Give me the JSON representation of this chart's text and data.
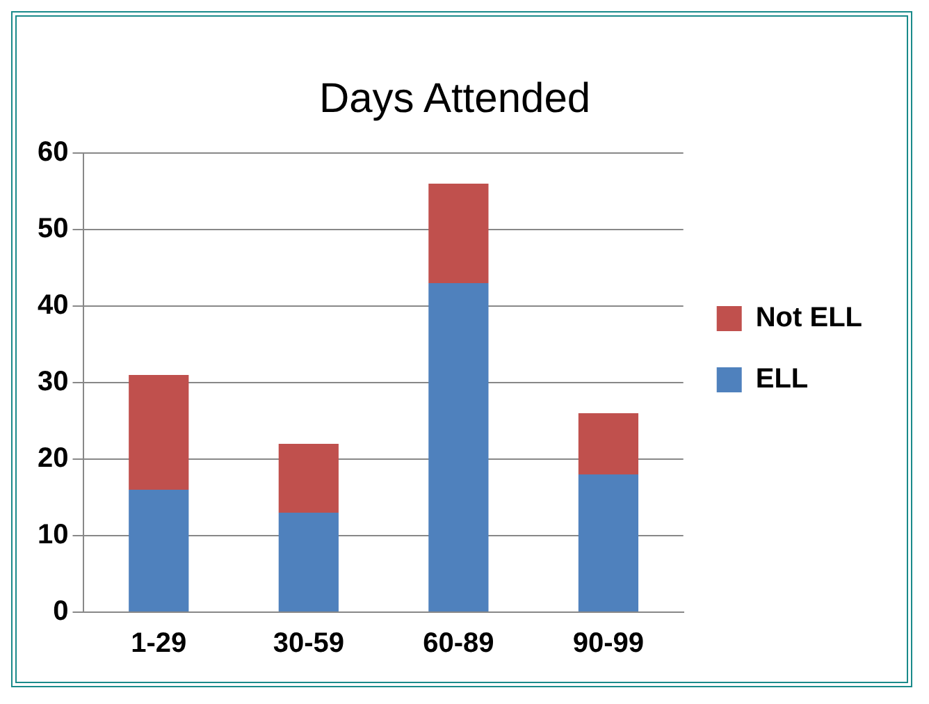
{
  "chart_data": {
    "type": "bar",
    "title": "Days Attended",
    "categories": [
      "1-29",
      "30-59",
      "60-89",
      "90-99"
    ],
    "stacked": true,
    "series": [
      {
        "name": "ELL",
        "color": "#4f81bd",
        "values": [
          16,
          13,
          43,
          18
        ]
      },
      {
        "name": "Not ELL",
        "color": "#c0504d",
        "values": [
          15,
          9,
          13,
          8
        ]
      }
    ],
    "ylim": [
      0,
      60
    ],
    "yticks": [
      0,
      10,
      20,
      30,
      40,
      50,
      60
    ],
    "grid": "y",
    "legend": "right"
  }
}
